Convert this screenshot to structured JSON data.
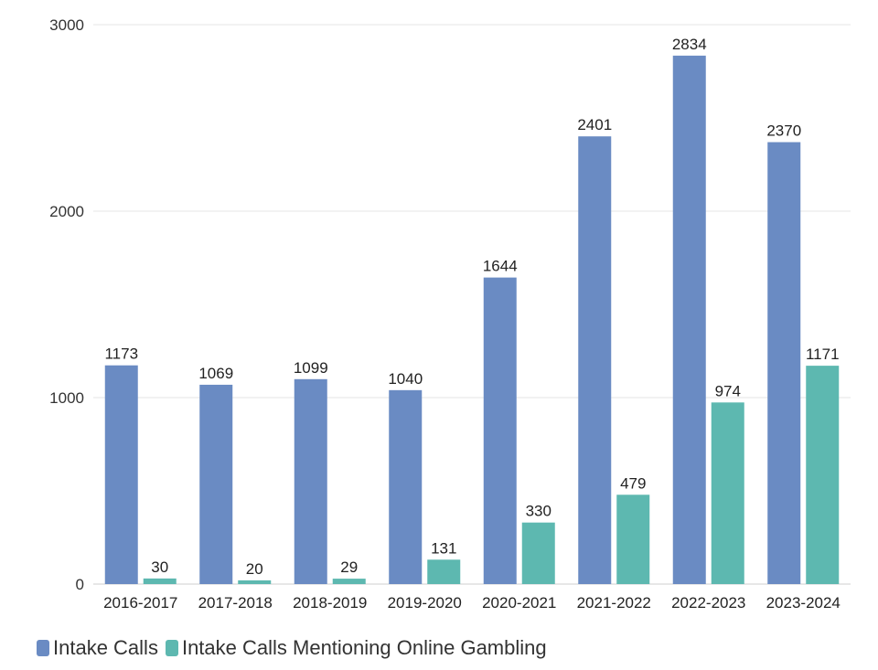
{
  "chart_data": {
    "type": "bar",
    "title": "",
    "xlabel": "",
    "ylabel": "",
    "ylim": [
      0,
      3000
    ],
    "yticks": [
      0,
      1000,
      2000,
      3000
    ],
    "categories": [
      "2016-2017",
      "2017-2018",
      "2018-2019",
      "2019-2020",
      "2020-2021",
      "2021-2022",
      "2022-2023",
      "2023-2024"
    ],
    "series": [
      {
        "name": "Intake Calls",
        "color": "#6a8bc3",
        "values": [
          1173,
          1069,
          1099,
          1040,
          1644,
          2401,
          2834,
          2370
        ]
      },
      {
        "name": "Intake Calls Mentioning Online Gambling",
        "color": "#5db8b0",
        "values": [
          30,
          20,
          29,
          131,
          330,
          479,
          974,
          1171
        ]
      }
    ],
    "grid": true,
    "legend_position": "bottom-left"
  }
}
